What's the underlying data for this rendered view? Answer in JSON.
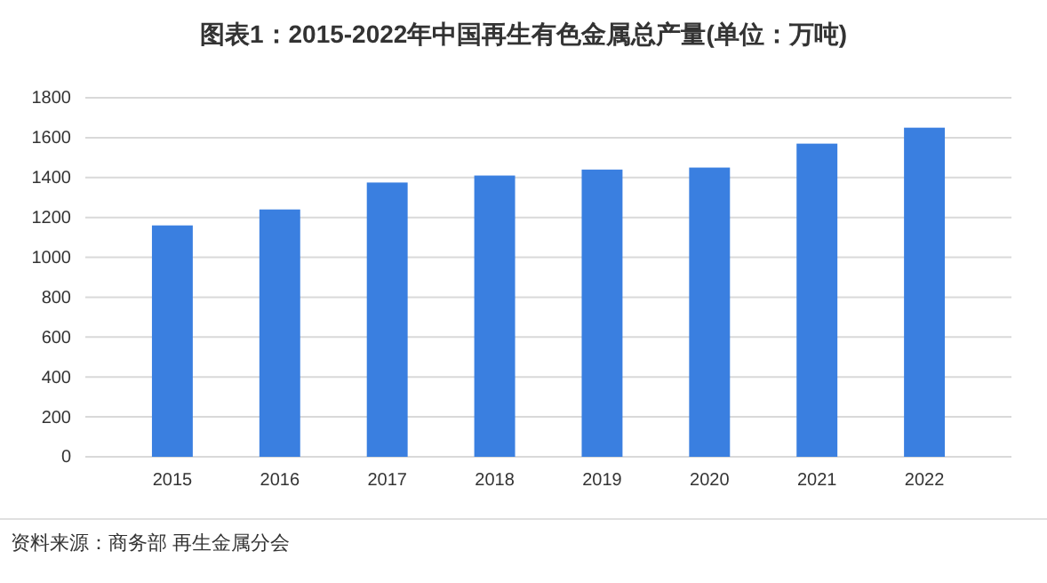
{
  "chart_data": {
    "type": "bar",
    "title": "图表1：2015-2022年中国再生有色金属总产量(单位：万吨)",
    "categories": [
      "2015",
      "2016",
      "2017",
      "2018",
      "2019",
      "2020",
      "2021",
      "2022"
    ],
    "values": [
      1160,
      1240,
      1375,
      1410,
      1440,
      1450,
      1570,
      1650
    ],
    "color": "#3a7fe0",
    "ylim": [
      0,
      1800
    ],
    "yticks": [
      0,
      200,
      400,
      600,
      800,
      1000,
      1200,
      1400,
      1600,
      1800
    ],
    "grid": "y",
    "annotations": [
      "资料来源：商务部 再生金属分会"
    ]
  }
}
